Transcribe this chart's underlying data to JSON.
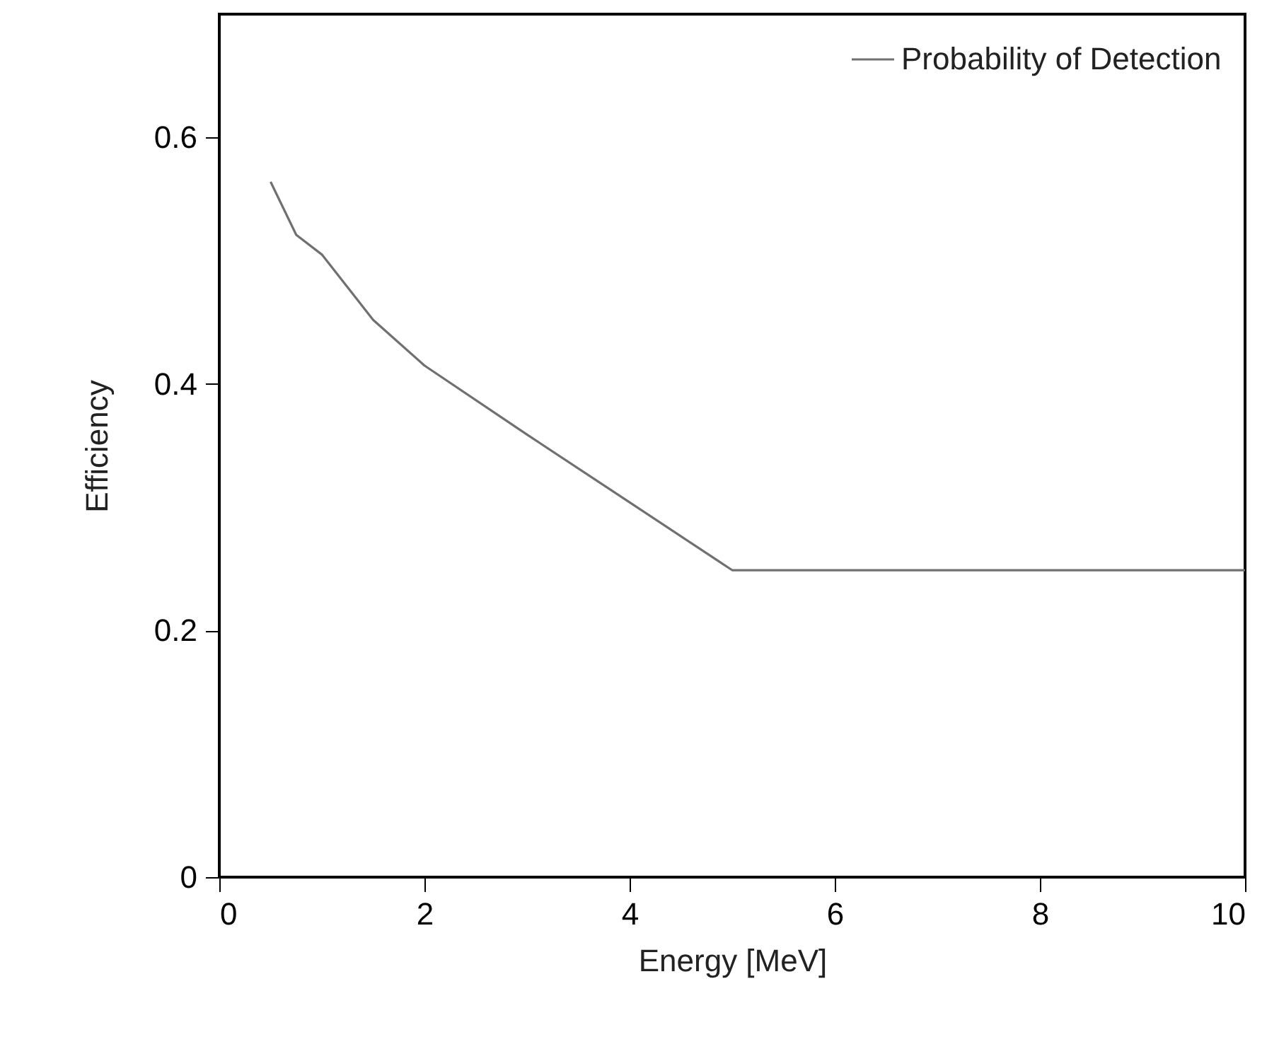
{
  "chart_data": {
    "type": "line",
    "xlabel": "Energy [MeV]",
    "ylabel": "Efficiency",
    "x": [
      0.5,
      0.75,
      1.0,
      1.5,
      2.0,
      3.0,
      4.0,
      5.0,
      10.0
    ],
    "series": [
      {
        "name": "Probability of Detection",
        "color": "#707070",
        "values": [
          0.564,
          0.521,
          0.505,
          0.452,
          0.415,
          0.359,
          0.304,
          0.249,
          0.249
        ]
      }
    ],
    "xlim": [
      0,
      10
    ],
    "xticks": [
      0,
      2,
      4,
      6,
      8,
      10
    ],
    "ylim": [
      0,
      0.7
    ],
    "yticks": [
      0,
      0.2,
      0.4,
      0.6
    ],
    "grid": false,
    "legend": "top right",
    "marker": "none",
    "line_style": "solid"
  }
}
